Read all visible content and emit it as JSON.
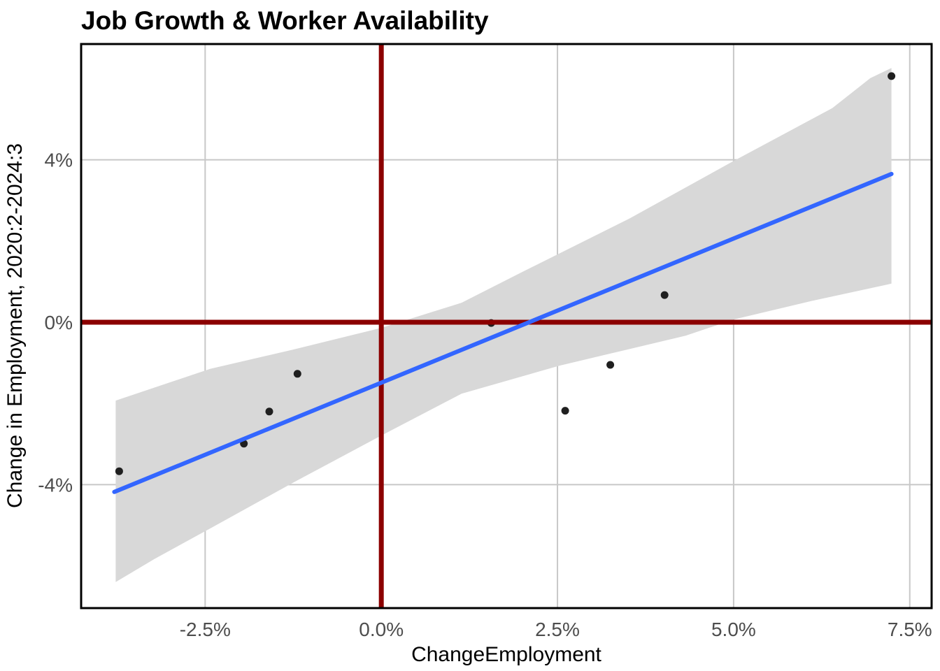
{
  "page": {
    "background_color": "#FFFFFF"
  },
  "chart_data": {
    "type": "scatter",
    "title": "Job Growth & Worker Availability",
    "xlabel": "ChangeEmployment",
    "ylabel": "Change in Employment, 2020:2-2024:3",
    "units": "percent",
    "xlim": [
      -4.26,
      7.81
    ],
    "ylim": [
      -7.04,
      6.85
    ],
    "x_ticks": [
      -2.5,
      0.0,
      2.5,
      5.0,
      7.5
    ],
    "x_tick_labels": [
      "-2.5%",
      "0.0%",
      "2.5%",
      "5.0%",
      "7.5%"
    ],
    "y_ticks": [
      -4,
      0,
      4
    ],
    "y_tick_labels": [
      "-4%",
      "0%",
      "4%"
    ],
    "grid": "major-only",
    "legend": "none",
    "points": [
      [
        -3.72,
        -3.67
      ],
      [
        -1.95,
        -2.99
      ],
      [
        -1.59,
        -2.2
      ],
      [
        -1.19,
        -1.27
      ],
      [
        1.56,
        -0.02
      ],
      [
        2.61,
        -2.18
      ],
      [
        3.25,
        -1.05
      ],
      [
        4.02,
        0.67
      ],
      [
        7.24,
        6.06
      ]
    ],
    "regression_line": {
      "x": [
        -3.79,
        7.24
      ],
      "y": [
        -4.18,
        3.65
      ],
      "slope_approx": 0.71,
      "intercept_approx": -1.5
    },
    "confidence_band": {
      "upper": [
        [
          -3.77,
          -1.93
        ],
        [
          -2.43,
          -1.15
        ],
        [
          -1.24,
          -0.67
        ],
        [
          0.0,
          -0.14
        ],
        [
          1.14,
          0.48
        ],
        [
          1.98,
          1.22
        ],
        [
          3.52,
          2.55
        ],
        [
          4.99,
          3.96
        ],
        [
          6.4,
          5.27
        ],
        [
          6.94,
          6.01
        ],
        [
          7.24,
          6.26
        ]
      ],
      "lower": [
        [
          -3.77,
          -6.4
        ],
        [
          -3.22,
          -5.83
        ],
        [
          -2.43,
          -5.08
        ],
        [
          -1.24,
          -3.94
        ],
        [
          0.0,
          -2.79
        ],
        [
          1.14,
          -1.76
        ],
        [
          2.53,
          -1.07
        ],
        [
          4.32,
          -0.33
        ],
        [
          5.01,
          0.07
        ],
        [
          6.1,
          0.52
        ],
        [
          7.24,
          0.95
        ]
      ]
    },
    "reference_lines": {
      "vline_x": 0,
      "hline_y": 0
    },
    "colors": {
      "reference_line": "#8B0000",
      "regression_line": "#3366FF",
      "confidence_band": "#D8D8D8",
      "gridline": "#C8C8C8",
      "panel_border": "#000000",
      "point": "#1F1F1F",
      "tick_label": "#4D4D4D",
      "title": "#000000"
    }
  }
}
